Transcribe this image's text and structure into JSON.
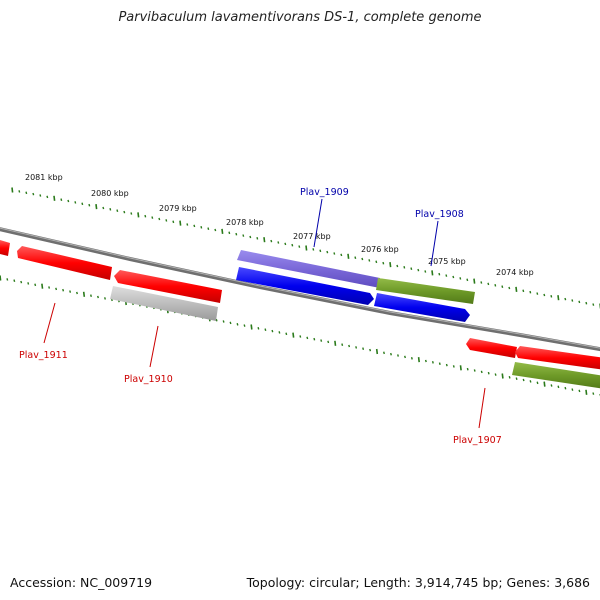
{
  "title": "Parvibaculum lavamentivorans DS-1, complete genome",
  "footer": {
    "accession": "Accession: NC_009719",
    "summary": "Topology: circular; Length: 3,914,745 bp; Genes: 3,686"
  },
  "colors": {
    "backbone": "#777777",
    "ticks": "#2a7a1a",
    "red": "#ff0000",
    "gray": "#bdbdbd",
    "purple": "#7a68d8",
    "blue": "#0000ee",
    "olive": "#6e9a28",
    "red_label": "#cc0000",
    "blue_label": "#0000aa"
  },
  "ruler_labels": [
    "2081 kbp",
    "2080 kbp",
    "2079 kbp",
    "2078 kbp",
    "2077 kbp",
    "2076 kbp",
    "2075 kbp",
    "2074 kbp"
  ],
  "gene_labels": [
    "Plav_1909",
    "Plav_1908",
    "Plav_1911",
    "Plav_1910",
    "Plav_1907"
  ]
}
